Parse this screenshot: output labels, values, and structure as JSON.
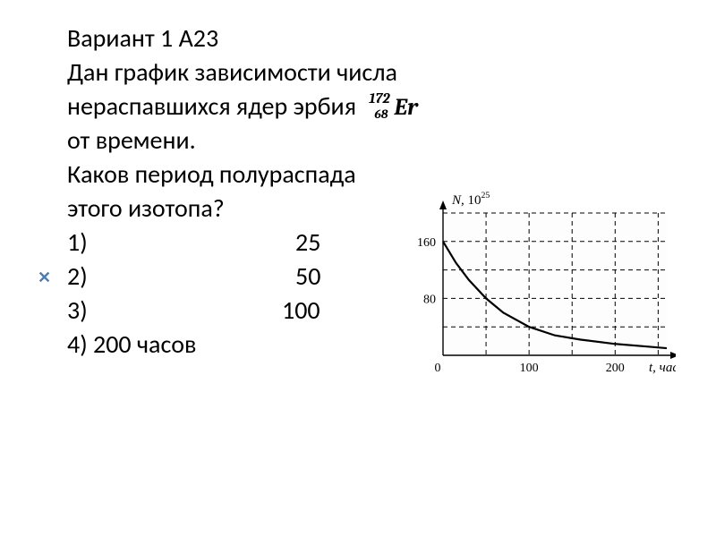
{
  "header": "Вариант 1 А23",
  "problem": {
    "line1": "Дан график зависимости числа",
    "line2_part1": "нераспавшихся ядер эрбия",
    "isotope": {
      "mass": "172",
      "atomic": "68",
      "symbol": "Er"
    },
    "line3": "от времени.",
    "line4": "Каков период полураспада",
    "line5": "этого изотопа?"
  },
  "answers": [
    {
      "num": "1)",
      "value": "25"
    },
    {
      "num": "2)",
      "value": "50"
    },
    {
      "num": "3)",
      "value": "100"
    },
    {
      "num": "4) 200 часов",
      "value": ""
    }
  ],
  "chart": {
    "ylabel_prefix": "N,",
    "ylabel_exp_base": "10",
    "ylabel_exp_sup": "25",
    "xlabel": "t, час",
    "yticks": [
      "160",
      "80"
    ],
    "xticks": [
      "0",
      "100",
      "200"
    ],
    "y_axis_max_value": 200,
    "x_axis_max_value": 260,
    "y_gridlines": [
      40,
      80,
      120,
      160,
      200
    ],
    "x_gridlines": [
      50,
      100,
      150,
      200,
      250
    ],
    "curve_points": [
      [
        0,
        160
      ],
      [
        15,
        130
      ],
      [
        30,
        106
      ],
      [
        50,
        80
      ],
      [
        70,
        60
      ],
      [
        100,
        40
      ],
      [
        130,
        28
      ],
      [
        160,
        22
      ],
      [
        200,
        16
      ],
      [
        240,
        12
      ],
      [
        260,
        10
      ]
    ],
    "colors": {
      "axis": "#000000",
      "grid": "#000000",
      "curve": "#000000",
      "text": "#000000",
      "background": "#fdfdfd"
    },
    "line_width_curve": 2.2,
    "line_width_axis": 1.4,
    "dash_pattern": "5,4",
    "font_size_labels": 15,
    "font_size_ticks": 14
  },
  "typography": {
    "main_fontsize": 28,
    "main_color": "#000000"
  },
  "marker": {
    "symbol": "✕",
    "color": "#4a7db8",
    "fontsize": 18
  }
}
